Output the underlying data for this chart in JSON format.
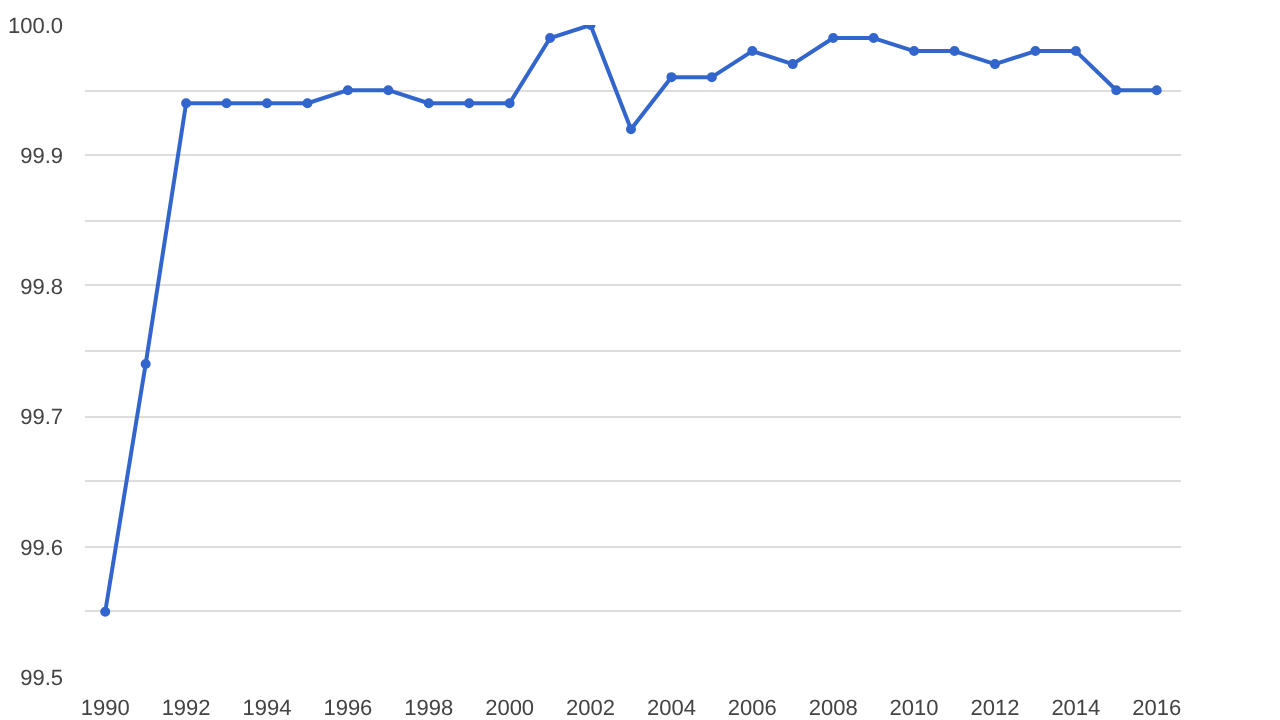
{
  "chart_data": {
    "type": "line",
    "x": [
      1990,
      1991,
      1992,
      1993,
      1994,
      1995,
      1996,
      1997,
      1998,
      1999,
      2000,
      2001,
      2002,
      2003,
      2004,
      2005,
      2006,
      2007,
      2008,
      2009,
      2010,
      2011,
      2012,
      2013,
      2014,
      2015,
      2016
    ],
    "series": [
      {
        "color": "#3366cc",
        "values": [
          99.55,
          99.74,
          99.94,
          99.94,
          99.94,
          99.94,
          99.95,
          99.95,
          99.94,
          99.94,
          99.94,
          99.99,
          100.0,
          99.92,
          99.96,
          99.96,
          99.98,
          99.97,
          99.99,
          99.99,
          99.98,
          99.98,
          99.97,
          99.98,
          99.98,
          99.95,
          99.95
        ]
      }
    ],
    "xlim": [
      1989.5,
      2016.6
    ],
    "xticks": [
      1990,
      1992,
      1994,
      1996,
      1998,
      2000,
      2002,
      2004,
      2006,
      2008,
      2010,
      2012,
      2014,
      2016
    ],
    "ylim": [
      99.5,
      100.0
    ],
    "yticks": [
      {
        "value": 99.5,
        "label": "99.5"
      },
      {
        "value": 99.55,
        "label": null
      },
      {
        "value": 99.6,
        "label": "99.6"
      },
      {
        "value": 99.65,
        "label": null
      },
      {
        "value": 99.7,
        "label": "99.7"
      },
      {
        "value": 99.75,
        "label": null
      },
      {
        "value": 99.8,
        "label": "99.8"
      },
      {
        "value": 99.85,
        "label": null
      },
      {
        "value": 99.9,
        "label": "99.9"
      },
      {
        "value": 99.95,
        "label": null
      },
      {
        "value": 100.0,
        "label": "100.0"
      }
    ],
    "grid": "y",
    "marker": "circle",
    "line_style": "solid"
  }
}
